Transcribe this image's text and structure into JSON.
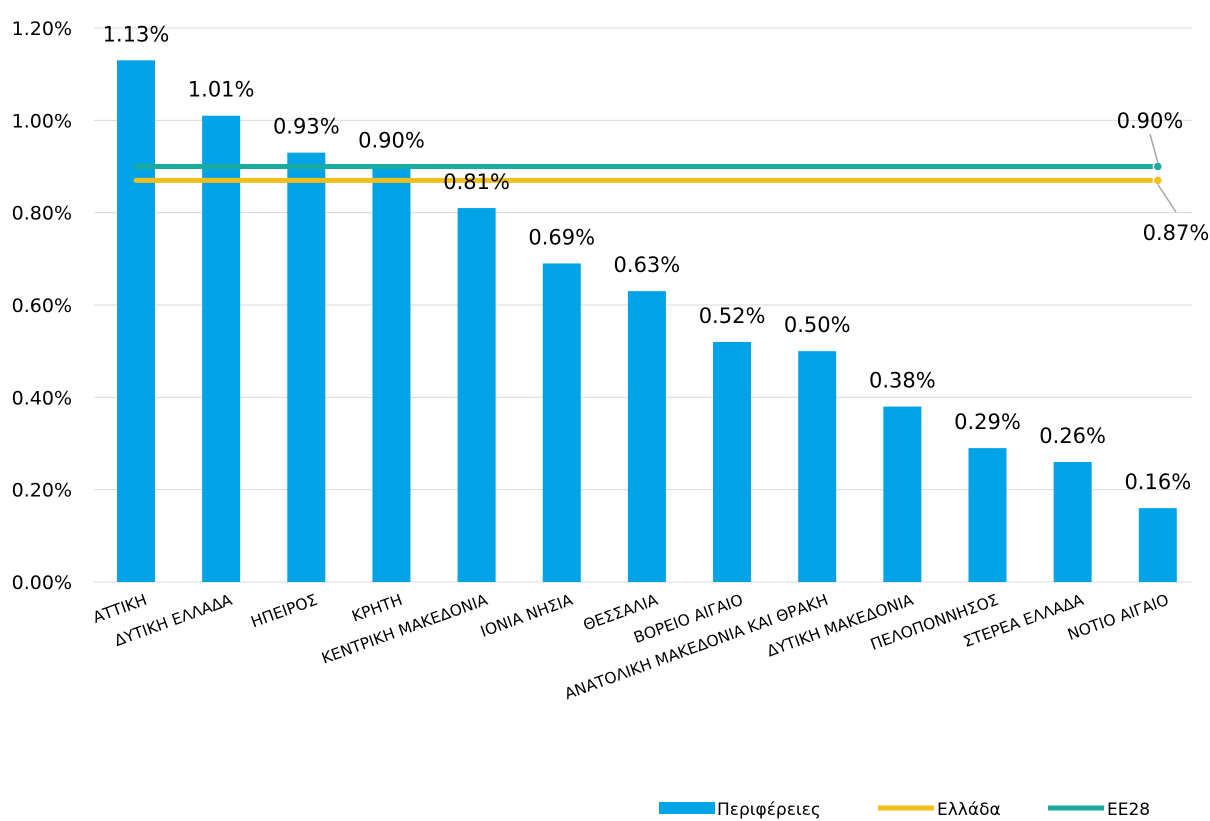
{
  "chart_data": {
    "type": "bar",
    "categories": [
      "ΑΤΤΙΚΗ",
      "ΔΥΤΙΚΗ ΕΛΛΑΔΑ",
      "ΗΠΕΙΡΟΣ",
      "ΚΡΗΤΗ",
      "ΚΕΝΤΡΙΚΗ ΜΑΚΕΔΟΝΙΑ",
      "ΙΟΝΙΑ ΝΗΣΙΑ",
      "ΘΕΣΣΑΛΙΑ",
      "ΒΟΡΕΙΟ ΑΙΓΑΙΟ",
      "ΑΝΑΤΟΛΙΚΗ ΜΑΚΕΔΟΝΙΑ ΚΑΙ ΘΡΑΚΗ",
      "ΔΥΤΙΚΗ ΜΑΚΕΔΟΝΙΑ",
      "ΠΕΛΟΠΟΝΝΗΣΟΣ",
      "ΣΤΕΡΕΑ ΕΛΛΑΔΑ",
      "ΝΟΤΙΟ ΑΙΓΑΙΟ"
    ],
    "series": [
      {
        "name": "Περιφέρειες",
        "kind": "bar",
        "color": "#00A3E6",
        "values": [
          1.13,
          1.01,
          0.93,
          0.9,
          0.81,
          0.69,
          0.63,
          0.52,
          0.5,
          0.38,
          0.29,
          0.26,
          0.16
        ],
        "labels": [
          "1.13%",
          "1.01%",
          "0.93%",
          "0.90%",
          "0.81%",
          "0.69%",
          "0.63%",
          "0.52%",
          "0.50%",
          "0.38%",
          "0.29%",
          "0.26%",
          "0.16%"
        ]
      },
      {
        "name": "Ελλάδα",
        "kind": "line",
        "color": "#F2BE1A",
        "value": 0.87,
        "end_label": "0.87%"
      },
      {
        "name": "ΕΕ28",
        "kind": "line",
        "color": "#1BAAA0",
        "value": 0.9,
        "end_label": "0.90%"
      }
    ],
    "ylim": [
      0,
      1.2
    ],
    "yticks": [
      0,
      0.2,
      0.4,
      0.6,
      0.8,
      1.0,
      1.2
    ],
    "ytick_labels": [
      "0.00%",
      "0.20%",
      "0.40%",
      "0.60%",
      "0.80%",
      "1.00%",
      "1.20%"
    ],
    "grid": true,
    "legend_position": "bottom-right"
  }
}
